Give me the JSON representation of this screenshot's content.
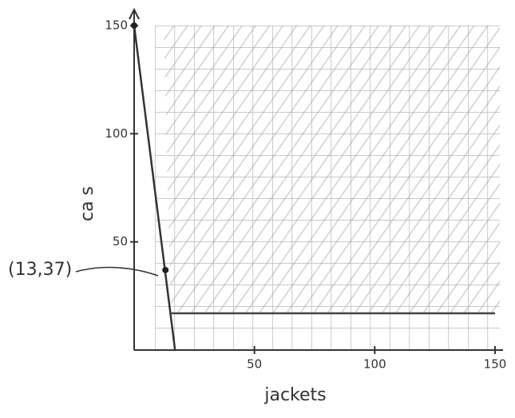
{
  "chart_data": {
    "type": "line",
    "x_label": "jackets",
    "y_label": "ca s",
    "xlim": [
      0,
      150
    ],
    "ylim": [
      0,
      150
    ],
    "xticks": [
      50,
      100,
      150
    ],
    "yticks": [
      50,
      100,
      150
    ],
    "series": [
      {
        "color": "#333333",
        "x": [
          0,
          17
        ],
        "values": [
          150,
          0
        ]
      },
      {
        "color": "#444444",
        "x": [
          15,
          150
        ],
        "values": [
          17,
          17
        ]
      }
    ],
    "points": {
      "color": "#222222",
      "x": [
        0,
        13
      ],
      "values": [
        150,
        37
      ]
    },
    "annotations": [
      {
        "text": "(13,37)",
        "x": 13,
        "y": 37
      }
    ]
  }
}
